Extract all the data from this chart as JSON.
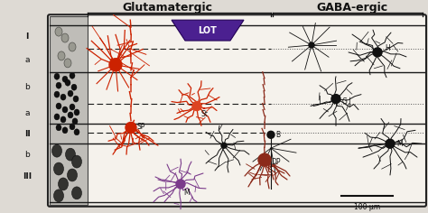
{
  "title_glutamatergic": "Glutamatergic",
  "title_gabaergic": "GABA-ergic",
  "lot_label": "LOT",
  "lot_color": "#4B2090",
  "lot_text_color": "white",
  "bg_color": "#f0ece4",
  "cortex_bg": "#f8f5ee",
  "left_col_dark": "#1a1a1a",
  "left_col_light": "#d0ccbf",
  "cell_color_red": "#CC2200",
  "cell_color_orange_red": "#DD4400",
  "cell_color_purple": "#7B3B8B",
  "cell_color_dark_red": "#8B2A1A",
  "cell_color_black": "#111111",
  "scale_bar_label": "100 μm",
  "fig_bg": "#dedad4"
}
